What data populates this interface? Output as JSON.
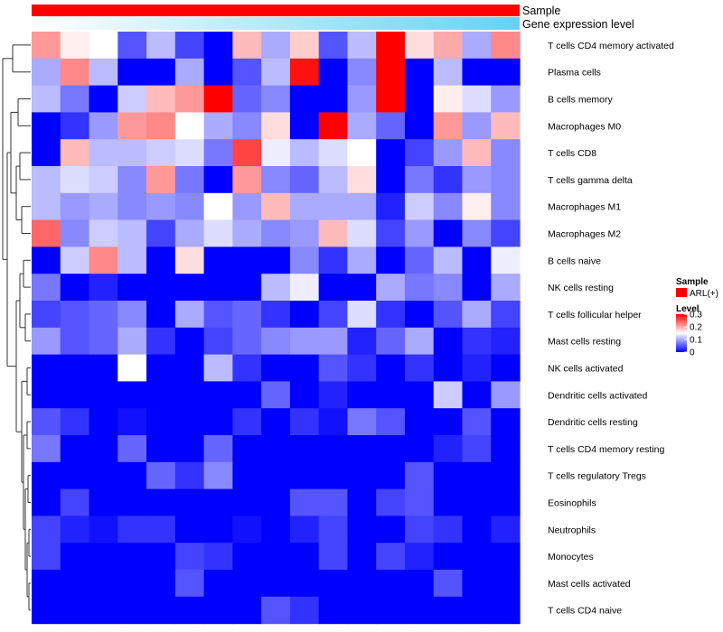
{
  "chart_data": {
    "type": "heatmap",
    "annotations": [
      {
        "label": "Sample",
        "color": "#ff0000"
      },
      {
        "label": "Gene expression level",
        "gradient": [
          "#ffffff",
          "#6ad0f2"
        ]
      }
    ],
    "rows": [
      "T cells CD4 memory activated",
      "Plasma cells",
      "B cells memory",
      "Macrophages M0",
      "T cells CD8",
      "T cells gamma delta",
      "Macrophages M1",
      "Macrophages M2",
      "B cells naive",
      "NK cells resting",
      "T cells follicular helper",
      "Mast cells resting",
      "NK cells activated",
      "Dendritic cells activated",
      "Dendritic cells resting",
      "T cells CD4 memory resting",
      "T cells regulatory  Tregs",
      "Eosinophils",
      "Neutrophils",
      "Monocytes",
      "Mast cells activated",
      "T cells CD4 naive"
    ],
    "values": [
      [
        0.21,
        0.16,
        0.15,
        0.05,
        0.11,
        0.04,
        0.0,
        0.19,
        0.1,
        0.18,
        0.05,
        0.11,
        0.3,
        0.17,
        0.2,
        0.1,
        0.22
      ],
      [
        0.1,
        0.22,
        0.11,
        0.0,
        0.0,
        0.1,
        0.0,
        0.05,
        0.11,
        0.29,
        0.0,
        0.08,
        0.3,
        0.0,
        0.11,
        0.0,
        0.0
      ],
      [
        0.11,
        0.07,
        0.0,
        0.12,
        0.19,
        0.21,
        0.3,
        0.06,
        0.08,
        0.0,
        0.0,
        0.09,
        0.3,
        0.0,
        0.16,
        0.13,
        0.09
      ],
      [
        0.0,
        0.03,
        0.09,
        0.21,
        0.22,
        0.15,
        0.1,
        0.08,
        0.17,
        0.0,
        0.3,
        0.1,
        0.06,
        0.0,
        0.21,
        0.09,
        0.19
      ],
      [
        0.0,
        0.19,
        0.11,
        0.11,
        0.12,
        0.13,
        0.07,
        0.26,
        0.14,
        0.11,
        0.13,
        0.15,
        0.0,
        0.04,
        0.09,
        0.19,
        0.08
      ],
      [
        0.11,
        0.13,
        0.12,
        0.08,
        0.21,
        0.07,
        0.0,
        0.21,
        0.08,
        0.06,
        0.11,
        0.17,
        0.0,
        0.07,
        0.03,
        0.09,
        0.08
      ],
      [
        0.11,
        0.09,
        0.1,
        0.08,
        0.09,
        0.08,
        0.15,
        0.09,
        0.19,
        0.1,
        0.1,
        0.1,
        0.02,
        0.12,
        0.08,
        0.16,
        0.08
      ],
      [
        0.24,
        0.08,
        0.12,
        0.11,
        0.04,
        0.1,
        0.13,
        0.1,
        0.08,
        0.09,
        0.19,
        0.13,
        0.04,
        0.09,
        0.0,
        0.08,
        0.04
      ],
      [
        0.0,
        0.12,
        0.22,
        0.11,
        0.0,
        0.17,
        0.0,
        0.0,
        0.0,
        0.08,
        0.03,
        0.1,
        0.0,
        0.06,
        0.11,
        0.0,
        0.14
      ],
      [
        0.07,
        0.0,
        0.02,
        0.0,
        0.0,
        0.0,
        0.0,
        0.0,
        0.11,
        0.14,
        0.0,
        0.0,
        0.1,
        0.07,
        0.08,
        0.0,
        0.1
      ],
      [
        0.04,
        0.05,
        0.06,
        0.08,
        0.0,
        0.1,
        0.05,
        0.06,
        0.03,
        0.0,
        0.04,
        0.13,
        0.03,
        0.0,
        0.05,
        0.1,
        0.04
      ],
      [
        0.09,
        0.05,
        0.06,
        0.1,
        0.03,
        0.0,
        0.04,
        0.06,
        0.08,
        0.09,
        0.09,
        0.02,
        0.06,
        0.1,
        0.0,
        0.03,
        0.02
      ],
      [
        0.0,
        0.0,
        0.0,
        0.15,
        0.0,
        0.0,
        0.11,
        0.03,
        0.0,
        0.0,
        0.05,
        0.03,
        0.0,
        0.03,
        0.0,
        0.02,
        0.0
      ],
      [
        0.0,
        0.0,
        0.0,
        0.0,
        0.0,
        0.0,
        0.0,
        0.0,
        0.06,
        0.0,
        0.02,
        0.0,
        0.0,
        0.0,
        0.12,
        0.0,
        0.09
      ],
      [
        0.05,
        0.03,
        0.0,
        0.01,
        0.0,
        0.0,
        0.0,
        0.03,
        0.0,
        0.03,
        0.01,
        0.07,
        0.05,
        0.0,
        0.0,
        0.05,
        0.0
      ],
      [
        0.07,
        0.0,
        0.0,
        0.06,
        0.0,
        0.0,
        0.06,
        0.0,
        0.0,
        0.0,
        0.0,
        0.0,
        0.0,
        0.0,
        0.02,
        0.04,
        0.0
      ],
      [
        0.0,
        0.0,
        0.0,
        0.0,
        0.06,
        0.03,
        0.08,
        0.0,
        0.0,
        0.0,
        0.0,
        0.0,
        0.0,
        0.05,
        0.0,
        0.0,
        0.0
      ],
      [
        0.0,
        0.04,
        0.0,
        0.0,
        0.0,
        0.0,
        0.0,
        0.0,
        0.0,
        0.05,
        0.05,
        0.0,
        0.04,
        0.05,
        0.0,
        0.0,
        0.0
      ],
      [
        0.04,
        0.02,
        0.01,
        0.03,
        0.03,
        0.0,
        0.0,
        0.01,
        0.0,
        0.02,
        0.04,
        0.0,
        0.0,
        0.04,
        0.03,
        0.0,
        0.02
      ],
      [
        0.04,
        0.0,
        0.0,
        0.0,
        0.0,
        0.04,
        0.03,
        0.0,
        0.0,
        0.0,
        0.04,
        0.0,
        0.04,
        0.02,
        0.0,
        0.0,
        0.0
      ],
      [
        0.0,
        0.0,
        0.0,
        0.0,
        0.0,
        0.05,
        0.0,
        0.0,
        0.0,
        0.0,
        0.0,
        0.0,
        0.0,
        0.0,
        0.05,
        0.0,
        0.0
      ],
      [
        0.0,
        0.0,
        0.0,
        0.0,
        0.0,
        0.0,
        0.0,
        0.0,
        0.05,
        0.03,
        0.0,
        0.0,
        0.0,
        0.0,
        0.0,
        0.0,
        0.0
      ]
    ],
    "color_scale": {
      "min": 0,
      "max": 0.3,
      "colors": [
        "#0000ff",
        "#ffffff",
        "#ff0000"
      ]
    },
    "legend": {
      "position": "right",
      "sample_title": "Sample",
      "sample_entries": [
        {
          "label": "ARL(+)",
          "color": "#ff0000"
        }
      ],
      "level_title": "Level",
      "level_ticks": [
        {
          "value": 0.3,
          "label": "0.3"
        },
        {
          "value": 0.2,
          "label": "0.2"
        },
        {
          "value": 0.1,
          "label": "0.1"
        },
        {
          "value": 0,
          "label": "0"
        }
      ]
    }
  }
}
